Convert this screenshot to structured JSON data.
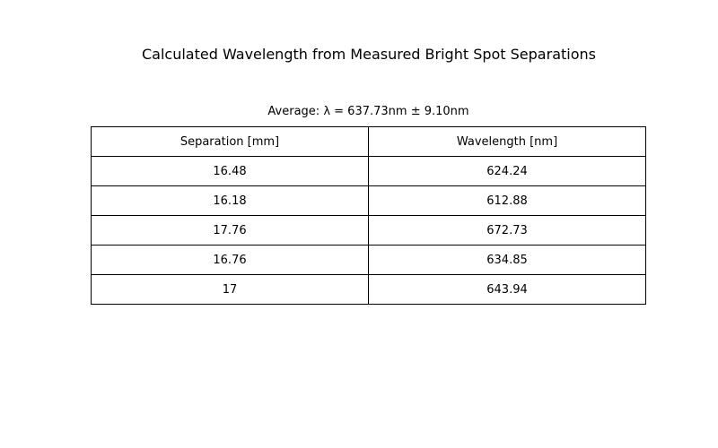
{
  "chart_data": {
    "type": "table",
    "title": "Calculated Wavelength from Measured Bright Spot Separations",
    "subtitle": "Average: λ = 637.73nm ± 9.10nm",
    "columns": [
      "Separation [mm]",
      "Wavelength [nm]"
    ],
    "rows": [
      [
        "16.48",
        "624.24"
      ],
      [
        "16.18",
        "612.88"
      ],
      [
        "17.76",
        "672.73"
      ],
      [
        "16.76",
        "634.85"
      ],
      [
        "17",
        "643.94"
      ]
    ]
  }
}
